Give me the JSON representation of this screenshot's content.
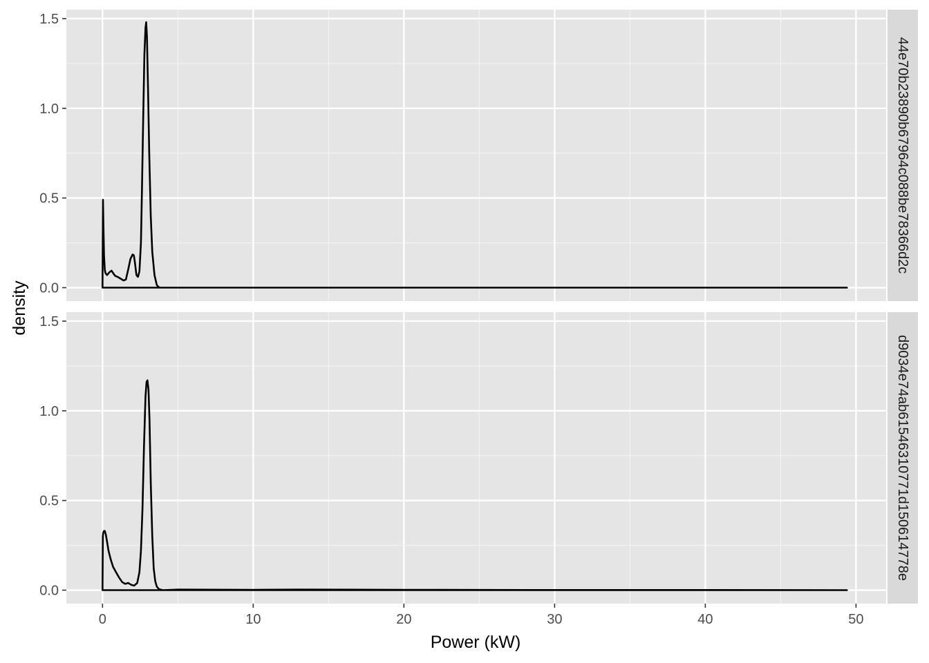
{
  "chart_data": {
    "type": "line",
    "subtype": "density-faceted",
    "xlabel": "Power (kW)",
    "ylabel": "density",
    "xlim": [
      -2.4,
      52
    ],
    "ylim": [
      -0.075,
      1.55
    ],
    "x_ticks": [
      0,
      10,
      20,
      30,
      40,
      50
    ],
    "x_tick_labels": [
      "0",
      "10",
      "20",
      "30",
      "40",
      "50"
    ],
    "y_ticks": [
      0.0,
      0.5,
      1.0,
      1.5
    ],
    "y_tick_labels": [
      "0.0",
      "0.5",
      "1.0",
      "1.5"
    ],
    "grid": true,
    "panels": [
      {
        "strip_label": "44e70b23890b67964c088be78366d2c",
        "series": [
          {
            "name": "density",
            "x": [
              0.0,
              0.03,
              0.06,
              0.1,
              0.15,
              0.2,
              0.3,
              0.45,
              0.6,
              0.75,
              0.85,
              1.0,
              1.2,
              1.4,
              1.55,
              1.7,
              1.85,
              2.0,
              2.08,
              2.15,
              2.25,
              2.35,
              2.45,
              2.55,
              2.62,
              2.7,
              2.78,
              2.85,
              2.9,
              2.95,
              3.02,
              3.1,
              3.2,
              3.3,
              3.45,
              3.6,
              3.7,
              3.8,
              4.0,
              5.0,
              10.0,
              20.0,
              30.0,
              40.0,
              49.4
            ],
            "y": [
              0.0,
              0.49,
              0.35,
              0.18,
              0.1,
              0.08,
              0.07,
              0.085,
              0.095,
              0.075,
              0.065,
              0.06,
              0.05,
              0.04,
              0.045,
              0.1,
              0.16,
              0.185,
              0.18,
              0.14,
              0.07,
              0.06,
              0.09,
              0.25,
              0.55,
              0.95,
              1.3,
              1.45,
              1.48,
              1.4,
              1.1,
              0.75,
              0.4,
              0.2,
              0.07,
              0.015,
              0.005,
              0.0,
              0.0,
              0.0,
              0.0,
              0.0,
              0.0,
              0.0,
              0.0
            ]
          }
        ]
      },
      {
        "strip_label": "d9034e74ab61546310771d150614778e",
        "series": [
          {
            "name": "density",
            "x": [
              0.0,
              0.02,
              0.05,
              0.1,
              0.15,
              0.22,
              0.3,
              0.4,
              0.55,
              0.7,
              0.9,
              1.1,
              1.3,
              1.5,
              1.7,
              1.9,
              2.1,
              2.3,
              2.45,
              2.55,
              2.65,
              2.75,
              2.85,
              2.92,
              2.98,
              3.05,
              3.12,
              3.2,
              3.3,
              3.4,
              3.5,
              3.6,
              3.75,
              4.0,
              5.0,
              10.0,
              13.0,
              20.0,
              30.0,
              40.0,
              49.4
            ],
            "y": [
              0.0,
              0.3,
              0.32,
              0.33,
              0.33,
              0.31,
              0.27,
              0.22,
              0.17,
              0.13,
              0.1,
              0.07,
              0.045,
              0.035,
              0.04,
              0.03,
              0.025,
              0.04,
              0.1,
              0.22,
              0.45,
              0.8,
              1.08,
              1.16,
              1.17,
              1.12,
              0.95,
              0.6,
              0.3,
              0.12,
              0.05,
              0.02,
              0.005,
              0.0,
              0.003,
              0.002,
              0.003,
              0.002,
              0.001,
              0.001,
              0.0
            ]
          }
        ]
      }
    ]
  }
}
